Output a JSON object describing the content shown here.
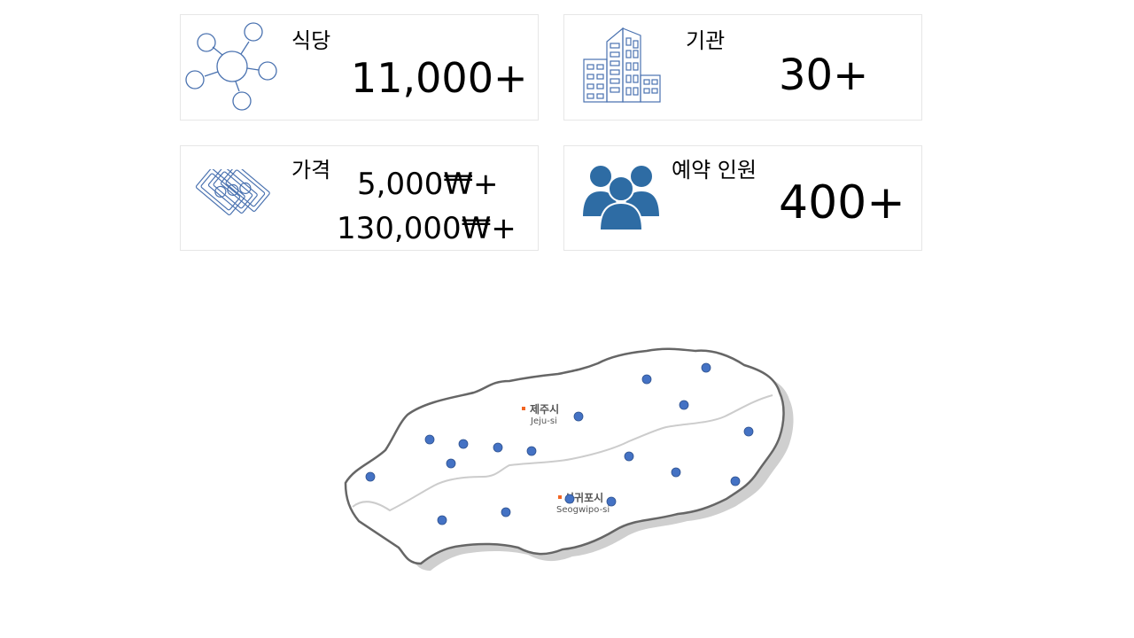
{
  "stats": {
    "restaurants": {
      "label": "식당",
      "value": "11,000+",
      "icon": "network-icon"
    },
    "institutions": {
      "label": "기관",
      "value": "30+",
      "icon": "building-icon"
    },
    "price": {
      "label": "가격",
      "value_min": "5,000₩+",
      "value_max": "130,000₩+",
      "icon": "money-icon"
    },
    "reservations": {
      "label": "예약 인원",
      "value": "400+",
      "icon": "users-icon"
    }
  },
  "map": {
    "jeju_city_ko": "제주시",
    "jeju_city_en": "Jeju-si",
    "seogwipo_ko": "서귀포시",
    "seogwipo_en": "Seogwipo-si"
  },
  "colors": {
    "icon_outline": "#4a72b0",
    "users_icon_fill": "#2e6ca4",
    "marker": "#4472c4",
    "city_marker": "#f26522",
    "island_outline": "#666666",
    "district_line": "#cccccc"
  }
}
